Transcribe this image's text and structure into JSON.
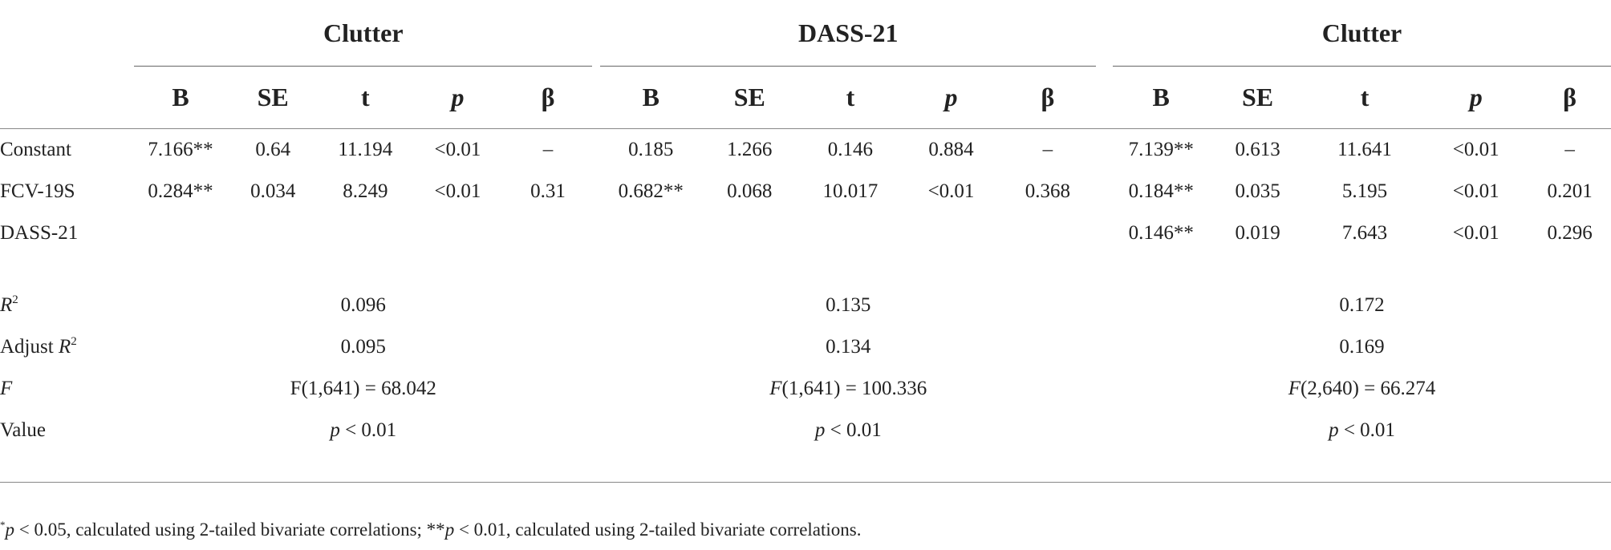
{
  "groups": [
    "Clutter",
    "DASS-21",
    "Clutter"
  ],
  "columns": [
    "B",
    "SE",
    "t",
    "p",
    "β"
  ],
  "rows": [
    {
      "label": "Constant",
      "cells": [
        "7.166**",
        "0.64",
        "11.194",
        "<0.01",
        "–",
        "0.185",
        "1.266",
        "0.146",
        "0.884",
        "–",
        "7.139**",
        "0.613",
        "11.641",
        "<0.01",
        "–"
      ]
    },
    {
      "label": "FCV-19S",
      "cells": [
        "0.284**",
        "0.034",
        "8.249",
        "<0.01",
        "0.31",
        "0.682**",
        "0.068",
        "10.017",
        "<0.01",
        "0.368",
        "0.184**",
        "0.035",
        "5.195",
        "<0.01",
        "0.201"
      ]
    },
    {
      "label": "DASS-21",
      "cells": [
        "",
        "",
        "",
        "",
        "",
        "",
        "",
        "",
        "",
        "",
        "0.146**",
        "0.019",
        "7.643",
        "<0.01",
        "0.296"
      ]
    }
  ],
  "summary": {
    "r2": {
      "label_var": "R",
      "label_sup": "2",
      "values": [
        "0.096",
        "0.135",
        "0.172"
      ]
    },
    "adj_r2": {
      "label_prefix": "Adjust ",
      "label_var": "R",
      "label_sup": "2",
      "values": [
        "0.095",
        "0.134",
        "0.169"
      ]
    },
    "f": {
      "label": "F",
      "values": [
        {
          "italic_prefix": "",
          "text": "F(1,641) = 68.042"
        },
        {
          "italic_prefix": "F",
          "text": "(1,641) = 100.336"
        },
        {
          "italic_prefix": "F",
          "text": "(2,640) = 66.274"
        }
      ]
    },
    "value": {
      "label": "Value",
      "values": [
        {
          "var": "p",
          "text": " < 0.01"
        },
        {
          "var": "p",
          "text": " < 0.01"
        },
        {
          "var": "p",
          "text": " < 0.01"
        }
      ]
    }
  },
  "footnote": {
    "star1": "*",
    "p1": "p",
    "text1": " < 0.05, calculated using 2-tailed bivariate correlations; **",
    "p2": "p",
    "text2": " < 0.01, calculated using 2-tailed bivariate correlations."
  }
}
